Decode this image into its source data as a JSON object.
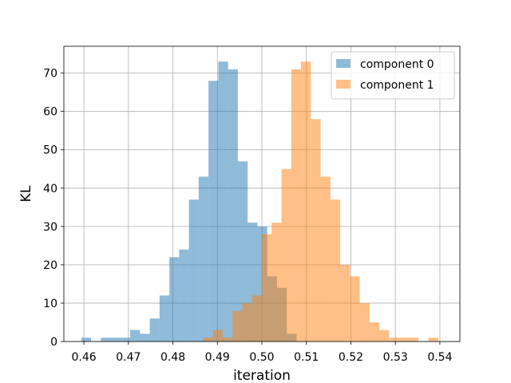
{
  "chart_data": {
    "type": "bar",
    "subtype": "histogram",
    "xlabel": "iteration",
    "ylabel": "KL",
    "xlim": [
      0.4555,
      0.5445
    ],
    "ylim": [
      0,
      77
    ],
    "xticks": [
      0.46,
      0.47,
      0.48,
      0.49,
      0.5,
      0.51,
      0.52,
      0.53,
      0.54
    ],
    "xtick_labels": [
      "0.46",
      "0.47",
      "0.48",
      "0.49",
      "0.50",
      "0.51",
      "0.52",
      "0.53",
      "0.54"
    ],
    "yticks": [
      0,
      10,
      20,
      30,
      40,
      50,
      60,
      70
    ],
    "ytick_labels": [
      "0",
      "10",
      "20",
      "30",
      "40",
      "50",
      "60",
      "70"
    ],
    "grid": true,
    "legend_position": "top-right",
    "series": [
      {
        "name": "component 0",
        "color": "#1f77b4",
        "alpha": 0.5,
        "bins": [
          [
            0.4594,
            0.4616,
            1
          ],
          [
            0.4638,
            0.466,
            1
          ],
          [
            0.466,
            0.4682,
            1
          ],
          [
            0.4682,
            0.4704,
            1
          ],
          [
            0.4704,
            0.4726,
            3
          ],
          [
            0.4726,
            0.4748,
            2
          ],
          [
            0.4748,
            0.477,
            6
          ],
          [
            0.477,
            0.4792,
            12
          ],
          [
            0.4792,
            0.4814,
            22
          ],
          [
            0.4814,
            0.4836,
            24
          ],
          [
            0.4836,
            0.4858,
            37
          ],
          [
            0.4858,
            0.488,
            43
          ],
          [
            0.488,
            0.4902,
            68
          ],
          [
            0.4902,
            0.4924,
            73
          ],
          [
            0.4924,
            0.4946,
            71
          ],
          [
            0.4946,
            0.4968,
            47
          ],
          [
            0.4968,
            0.499,
            31
          ],
          [
            0.499,
            0.5012,
            30
          ],
          [
            0.5012,
            0.5034,
            17
          ],
          [
            0.5034,
            0.5056,
            14
          ],
          [
            0.5056,
            0.5078,
            2
          ]
        ]
      },
      {
        "name": "component 1",
        "color": "#ff7f0e",
        "alpha": 0.5,
        "bins": [
          [
            0.4868,
            0.489,
            1
          ],
          [
            0.489,
            0.4912,
            3
          ],
          [
            0.4912,
            0.4934,
            1
          ],
          [
            0.4934,
            0.4956,
            8
          ],
          [
            0.4956,
            0.4978,
            10
          ],
          [
            0.4978,
            0.5,
            12
          ],
          [
            0.5,
            0.5022,
            28
          ],
          [
            0.5022,
            0.5044,
            31
          ],
          [
            0.5044,
            0.5066,
            45
          ],
          [
            0.5066,
            0.5088,
            71
          ],
          [
            0.5088,
            0.511,
            73
          ],
          [
            0.511,
            0.5132,
            58
          ],
          [
            0.5132,
            0.5154,
            43
          ],
          [
            0.5154,
            0.5176,
            37
          ],
          [
            0.5176,
            0.5198,
            20
          ],
          [
            0.5198,
            0.522,
            17
          ],
          [
            0.522,
            0.5242,
            10
          ],
          [
            0.5242,
            0.5264,
            5
          ],
          [
            0.5264,
            0.5286,
            3
          ],
          [
            0.5286,
            0.5308,
            1
          ],
          [
            0.5308,
            0.533,
            1
          ],
          [
            0.533,
            0.5352,
            1
          ],
          [
            0.5374,
            0.5396,
            1
          ]
        ]
      }
    ]
  }
}
